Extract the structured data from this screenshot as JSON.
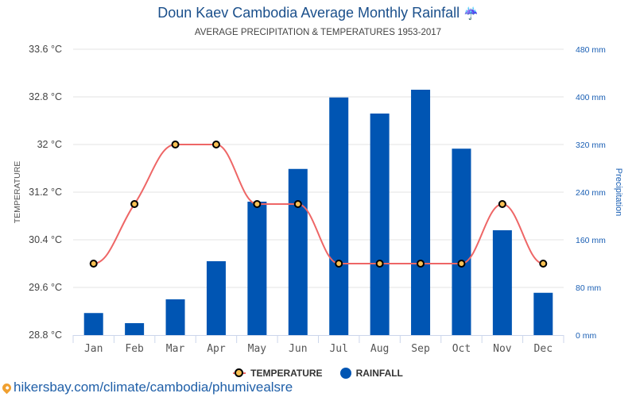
{
  "header": {
    "title": "Doun Kaev Cambodia Average Monthly Rainfall",
    "title_icon": "umbrella-rain-icon",
    "subtitle": "AVERAGE PRECIPITATION & TEMPERATURES 1953-2017"
  },
  "footer": {
    "source": "hikersbay.com/climate/cambodia/phumivealsre",
    "source_icon": "map-pin-icon"
  },
  "colors": {
    "bar": "#0055b3",
    "line": "#ee6666",
    "marker_fill": "#f9c154",
    "title": "#1a4f8b"
  },
  "chart_data": {
    "type": "bar+line",
    "title": "Doun Kaev Cambodia Average Monthly Rainfall",
    "subtitle": "AVERAGE PRECIPITATION & TEMPERATURES 1953-2017",
    "categories": [
      "Jan",
      "Feb",
      "Mar",
      "Apr",
      "May",
      "Jun",
      "Jul",
      "Aug",
      "Sep",
      "Oct",
      "Nov",
      "Dec"
    ],
    "series": [
      {
        "name": "TEMPERATURE",
        "type": "line",
        "axis": "left",
        "values": [
          30.0,
          31.0,
          32.0,
          32.0,
          31.0,
          31.0,
          30.0,
          30.0,
          30.0,
          30.0,
          31.0,
          30.0
        ]
      },
      {
        "name": "RAINFALL",
        "type": "bar",
        "axis": "right",
        "values": [
          37,
          20,
          60,
          124,
          224,
          279,
          399,
          372,
          412,
          313,
          176,
          71
        ]
      }
    ],
    "y_left": {
      "label": "TEMPERATURE",
      "range": [
        28.8,
        33.6
      ],
      "ticks": [
        "28.8 °C",
        "29.6 °C",
        "30.4 °C",
        "31.2 °C",
        "32 °C",
        "32.8 °C",
        "33.6 °C"
      ],
      "tick_values": [
        28.8,
        29.6,
        30.4,
        31.2,
        32,
        32.8,
        33.6
      ]
    },
    "y_right": {
      "label": "Precipitation",
      "range": [
        0,
        480
      ],
      "ticks": [
        "0 mm",
        "80 mm",
        "160 mm",
        "240 mm",
        "320 mm",
        "400 mm",
        "480 mm"
      ],
      "tick_values": [
        0,
        80,
        160,
        240,
        320,
        400,
        480
      ]
    },
    "legend": {
      "position": "bottom",
      "items": [
        "TEMPERATURE",
        "RAINFALL"
      ]
    },
    "grid": true
  }
}
